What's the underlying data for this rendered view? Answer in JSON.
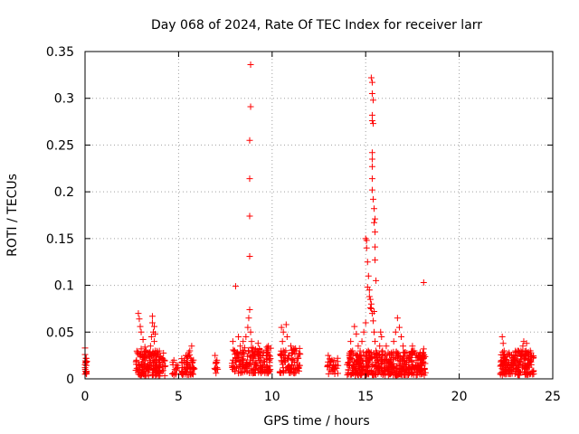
{
  "chart_data": {
    "type": "scatter",
    "title": "Day 068 of 2024, Rate Of TEC Index for receiver larr",
    "xlabel": "GPS time / hours",
    "ylabel": "ROTI / TECUs",
    "xlim": [
      0,
      25
    ],
    "ylim": [
      0,
      0.35
    ],
    "xticks": [
      0,
      5,
      10,
      15,
      20,
      25
    ],
    "xtick_labels": [
      "0",
      "5",
      "10",
      "15",
      "20",
      "25"
    ],
    "yticks": [
      0,
      0.05,
      0.1,
      0.15,
      0.2,
      0.25,
      0.3,
      0.35
    ],
    "ytick_labels": [
      "0",
      "0.05",
      "0.1",
      "0.15",
      "0.2",
      "0.25",
      "0.3",
      "0.35"
    ],
    "grid": true,
    "marker": "+",
    "color": "#ff0000",
    "series": [
      {
        "name": "ROTI",
        "points": [
          [
            0.0,
            0.033
          ],
          [
            0.0,
            0.026
          ],
          [
            0.05,
            0.018
          ],
          [
            0.0,
            0.012
          ],
          [
            0.05,
            0.008
          ],
          [
            0.0,
            0.015
          ],
          [
            0.05,
            0.022
          ],
          [
            0.0,
            0.005
          ],
          [
            2.75,
            0.02
          ],
          [
            2.8,
            0.028
          ],
          [
            2.85,
            0.015
          ],
          [
            2.9,
            0.01
          ],
          [
            2.95,
            0.024
          ],
          [
            3.0,
            0.032
          ],
          [
            3.05,
            0.018
          ],
          [
            3.1,
            0.012
          ],
          [
            2.85,
            0.07
          ],
          [
            2.9,
            0.064
          ],
          [
            2.95,
            0.056
          ],
          [
            3.0,
            0.05
          ],
          [
            3.1,
            0.042
          ],
          [
            3.15,
            0.025
          ],
          [
            3.2,
            0.016
          ],
          [
            3.25,
            0.03
          ],
          [
            3.3,
            0.022
          ],
          [
            3.4,
            0.01
          ],
          [
            3.5,
            0.035
          ],
          [
            3.55,
            0.045
          ],
          [
            3.6,
            0.06
          ],
          [
            3.6,
            0.067
          ],
          [
            3.65,
            0.05
          ],
          [
            3.7,
            0.04
          ],
          [
            3.75,
            0.03
          ],
          [
            3.8,
            0.02
          ],
          [
            3.85,
            0.012
          ],
          [
            3.9,
            0.026
          ],
          [
            3.95,
            0.018
          ],
          [
            4.0,
            0.008
          ],
          [
            4.05,
            0.015
          ],
          [
            4.1,
            0.022
          ],
          [
            4.15,
            0.013
          ],
          [
            4.2,
            0.02
          ],
          [
            4.0,
            0.003
          ],
          [
            3.45,
            0.028
          ],
          [
            3.35,
            0.014
          ],
          [
            3.2,
            0.034
          ],
          [
            3.7,
            0.056
          ],
          [
            3.75,
            0.048
          ],
          [
            4.7,
            0.015
          ],
          [
            4.8,
            0.01
          ],
          [
            4.75,
            0.02
          ],
          [
            4.85,
            0.005
          ],
          [
            5.2,
            0.012
          ],
          [
            5.3,
            0.02
          ],
          [
            5.4,
            0.025
          ],
          [
            5.5,
            0.015
          ],
          [
            5.6,
            0.03
          ],
          [
            5.65,
            0.022
          ],
          [
            5.7,
            0.035
          ],
          [
            5.75,
            0.018
          ],
          [
            5.8,
            0.01
          ],
          [
            5.55,
            0.028
          ],
          [
            5.35,
            0.008
          ],
          [
            5.45,
            0.018
          ],
          [
            6.95,
            0.025
          ],
          [
            7.0,
            0.018
          ],
          [
            7.05,
            0.012
          ],
          [
            7.0,
            0.006
          ],
          [
            7.05,
            0.02
          ],
          [
            7.9,
            0.04
          ],
          [
            8.0,
            0.03
          ],
          [
            8.05,
            0.02
          ],
          [
            8.1,
            0.012
          ],
          [
            8.2,
            0.025
          ],
          [
            8.3,
            0.035
          ],
          [
            8.4,
            0.015
          ],
          [
            8.5,
            0.028
          ],
          [
            8.6,
            0.045
          ],
          [
            8.7,
            0.055
          ],
          [
            8.75,
            0.065
          ],
          [
            8.8,
            0.074
          ],
          [
            8.85,
            0.05
          ],
          [
            8.9,
            0.04
          ],
          [
            8.95,
            0.03
          ],
          [
            9.0,
            0.022
          ],
          [
            9.1,
            0.015
          ],
          [
            9.2,
            0.03
          ],
          [
            9.3,
            0.02
          ],
          [
            9.4,
            0.012
          ],
          [
            9.5,
            0.025
          ],
          [
            9.6,
            0.018
          ],
          [
            9.7,
            0.03
          ],
          [
            9.8,
            0.035
          ],
          [
            9.85,
            0.02
          ],
          [
            9.9,
            0.01
          ],
          [
            8.2,
            0.045
          ],
          [
            8.45,
            0.04
          ],
          [
            9.25,
            0.038
          ],
          [
            8.65,
            0.018
          ],
          [
            8.05,
            0.099
          ],
          [
            8.8,
            0.131
          ],
          [
            8.8,
            0.174
          ],
          [
            8.8,
            0.214
          ],
          [
            8.8,
            0.255
          ],
          [
            8.85,
            0.291
          ],
          [
            8.85,
            0.336
          ],
          [
            10.5,
            0.055
          ],
          [
            10.6,
            0.05
          ],
          [
            10.55,
            0.04
          ],
          [
            10.6,
            0.03
          ],
          [
            10.7,
            0.02
          ],
          [
            10.8,
            0.012
          ],
          [
            10.9,
            0.025
          ],
          [
            11.0,
            0.035
          ],
          [
            11.1,
            0.028
          ],
          [
            11.2,
            0.018
          ],
          [
            11.3,
            0.03
          ],
          [
            11.4,
            0.022
          ],
          [
            10.75,
            0.058
          ],
          [
            10.8,
            0.045
          ],
          [
            11.15,
            0.01
          ],
          [
            13.0,
            0.025
          ],
          [
            13.1,
            0.018
          ],
          [
            13.2,
            0.012
          ],
          [
            13.3,
            0.02
          ],
          [
            13.4,
            0.015
          ],
          [
            13.5,
            0.022
          ],
          [
            13.15,
            0.008
          ],
          [
            14.2,
            0.04
          ],
          [
            14.3,
            0.03
          ],
          [
            14.4,
            0.056
          ],
          [
            14.5,
            0.048
          ],
          [
            14.6,
            0.035
          ],
          [
            14.7,
            0.025
          ],
          [
            14.8,
            0.04
          ],
          [
            14.9,
            0.05
          ],
          [
            15.0,
            0.06
          ],
          [
            15.0,
            0.15
          ],
          [
            15.05,
            0.14
          ],
          [
            15.1,
            0.125
          ],
          [
            15.15,
            0.11
          ],
          [
            15.2,
            0.095
          ],
          [
            15.25,
            0.085
          ],
          [
            15.3,
            0.075
          ],
          [
            15.35,
            0.07
          ],
          [
            15.4,
            0.062
          ],
          [
            15.45,
            0.05
          ],
          [
            15.5,
            0.04
          ],
          [
            15.55,
            0.03
          ],
          [
            15.6,
            0.02
          ],
          [
            15.65,
            0.012
          ],
          [
            15.7,
            0.025
          ],
          [
            15.75,
            0.035
          ],
          [
            15.8,
            0.05
          ],
          [
            15.85,
            0.045
          ],
          [
            15.9,
            0.03
          ],
          [
            16.0,
            0.02
          ],
          [
            16.1,
            0.035
          ],
          [
            16.2,
            0.028
          ],
          [
            16.3,
            0.018
          ],
          [
            16.4,
            0.025
          ],
          [
            16.5,
            0.04
          ],
          [
            16.6,
            0.05
          ],
          [
            16.7,
            0.065
          ],
          [
            16.8,
            0.055
          ],
          [
            16.9,
            0.045
          ],
          [
            17.0,
            0.035
          ],
          [
            17.1,
            0.028
          ],
          [
            17.2,
            0.02
          ],
          [
            17.3,
            0.015
          ],
          [
            17.4,
            0.025
          ],
          [
            17.5,
            0.035
          ],
          [
            17.6,
            0.03
          ],
          [
            17.7,
            0.02
          ],
          [
            17.8,
            0.012
          ],
          [
            17.9,
            0.02
          ],
          [
            18.0,
            0.025
          ],
          [
            18.1,
            0.032
          ],
          [
            18.05,
            0.018
          ],
          [
            14.35,
            0.012
          ],
          [
            14.55,
            0.018
          ],
          [
            14.85,
            0.01
          ],
          [
            15.15,
            0.005
          ],
          [
            15.1,
            0.098
          ],
          [
            15.2,
            0.088
          ],
          [
            15.3,
            0.08
          ],
          [
            15.25,
            0.076
          ],
          [
            15.45,
            0.072
          ],
          [
            15.55,
            0.105
          ],
          [
            15.3,
            0.322
          ],
          [
            15.35,
            0.317
          ],
          [
            15.35,
            0.305
          ],
          [
            15.4,
            0.298
          ],
          [
            15.35,
            0.282
          ],
          [
            15.35,
            0.276
          ],
          [
            15.4,
            0.273
          ],
          [
            15.35,
            0.242
          ],
          [
            15.35,
            0.235
          ],
          [
            15.35,
            0.227
          ],
          [
            15.35,
            0.214
          ],
          [
            15.35,
            0.202
          ],
          [
            15.4,
            0.192
          ],
          [
            15.45,
            0.182
          ],
          [
            15.5,
            0.171
          ],
          [
            15.45,
            0.167
          ],
          [
            15.5,
            0.157
          ],
          [
            15.5,
            0.141
          ],
          [
            15.5,
            0.127
          ],
          [
            15.05,
            0.148
          ],
          [
            18.1,
            0.103
          ],
          [
            22.3,
            0.045
          ],
          [
            22.35,
            0.038
          ],
          [
            22.4,
            0.03
          ],
          [
            22.5,
            0.02
          ],
          [
            22.6,
            0.012
          ],
          [
            22.7,
            0.025
          ],
          [
            22.8,
            0.018
          ],
          [
            22.9,
            0.01
          ],
          [
            23.0,
            0.02
          ],
          [
            23.1,
            0.025
          ],
          [
            23.2,
            0.015
          ],
          [
            23.3,
            0.03
          ],
          [
            23.4,
            0.035
          ],
          [
            23.45,
            0.04
          ],
          [
            23.5,
            0.025
          ],
          [
            23.6,
            0.038
          ],
          [
            23.7,
            0.02
          ],
          [
            23.8,
            0.03
          ],
          [
            23.85,
            0.015
          ],
          [
            23.9,
            0.008
          ],
          [
            23.6,
            0.005
          ],
          [
            22.45,
            0.005
          ]
        ],
        "clusters": [
          {
            "xmin": 0.0,
            "xmax": 0.1,
            "ymin": 0.003,
            "ymax": 0.022,
            "n": 14
          },
          {
            "xmin": 2.7,
            "xmax": 4.3,
            "ymin": 0.003,
            "ymax": 0.03,
            "n": 140
          },
          {
            "xmin": 4.65,
            "xmax": 4.95,
            "ymin": 0.004,
            "ymax": 0.018,
            "n": 10
          },
          {
            "xmin": 5.15,
            "xmax": 5.85,
            "ymin": 0.004,
            "ymax": 0.026,
            "n": 45
          },
          {
            "xmin": 6.9,
            "xmax": 7.1,
            "ymin": 0.004,
            "ymax": 0.02,
            "n": 8
          },
          {
            "xmin": 7.85,
            "xmax": 9.95,
            "ymin": 0.006,
            "ymax": 0.034,
            "n": 170
          },
          {
            "xmin": 10.4,
            "xmax": 11.5,
            "ymin": 0.006,
            "ymax": 0.034,
            "n": 80
          },
          {
            "xmin": 12.95,
            "xmax": 13.55,
            "ymin": 0.005,
            "ymax": 0.022,
            "n": 25
          },
          {
            "xmin": 14.0,
            "xmax": 18.2,
            "ymin": 0.004,
            "ymax": 0.03,
            "n": 420
          },
          {
            "xmin": 22.2,
            "xmax": 24.0,
            "ymin": 0.004,
            "ymax": 0.03,
            "n": 180
          }
        ]
      }
    ]
  }
}
